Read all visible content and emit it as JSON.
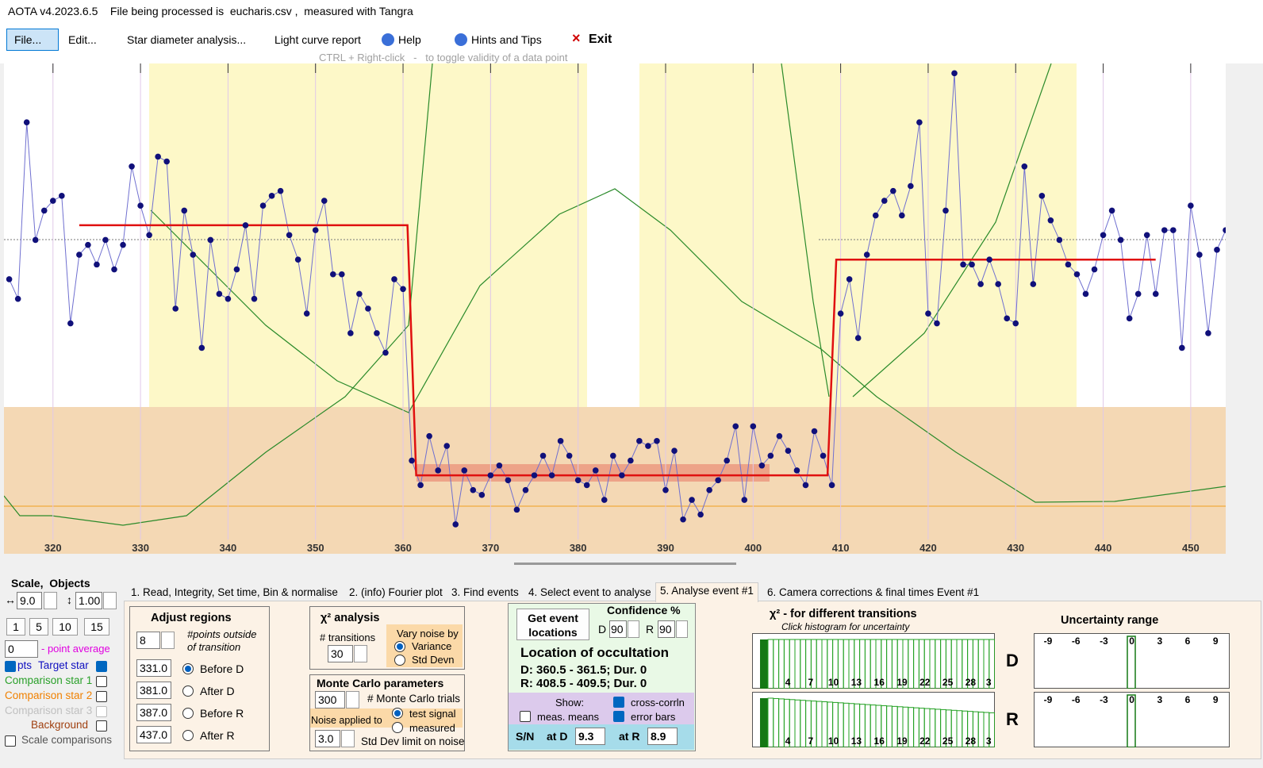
{
  "title": "AOTA v4.2023.6.5    File being processed is  eucharis.csv ,  measured with Tangra",
  "menu": [
    "File...",
    "Edit...",
    "Star diameter analysis...",
    "Light curve report",
    "Help",
    "Hints and Tips",
    "Exit"
  ],
  "hint": "CTRL + Right-click   -   to toggle validity of a data point",
  "plot": {
    "type": "line",
    "x": [
      315,
      316,
      317,
      318,
      319,
      320,
      321,
      322,
      323,
      324,
      325,
      326,
      327,
      328,
      329,
      330,
      331,
      332,
      333,
      334,
      335,
      336,
      337,
      338,
      339,
      340,
      341,
      342,
      343,
      344,
      345,
      346,
      347,
      348,
      349,
      350,
      351,
      352,
      353,
      354,
      355,
      356,
      357,
      358,
      359,
      360,
      361,
      362,
      363,
      364,
      365,
      366,
      367,
      368,
      369,
      370,
      371,
      372,
      373,
      374,
      375,
      376,
      377,
      378,
      379,
      380,
      381,
      382,
      383,
      384,
      385,
      386,
      387,
      388,
      389,
      390,
      391,
      392,
      393,
      394,
      395,
      396,
      397,
      398,
      399,
      400,
      401,
      402,
      403,
      404,
      405,
      406,
      407,
      408,
      409,
      410,
      411,
      412,
      413,
      414,
      415,
      416,
      417,
      418,
      419,
      420,
      421,
      422,
      423,
      424,
      425,
      426,
      427,
      428,
      429,
      430,
      431,
      432,
      433,
      434,
      435,
      436,
      437,
      438,
      439,
      440,
      441,
      442,
      443,
      444,
      445,
      446,
      447,
      448,
      449,
      450,
      451,
      452,
      453,
      454
    ],
    "values": [
      56,
      52,
      88,
      64,
      70,
      72,
      73,
      47,
      61,
      63,
      59,
      64,
      58,
      63,
      79,
      71,
      65,
      81,
      80,
      50,
      70,
      61,
      42,
      64,
      53,
      52,
      58,
      67,
      52,
      71,
      73,
      74,
      65,
      60,
      49,
      66,
      72,
      57,
      57,
      45,
      53,
      50,
      45,
      41,
      56,
      54,
      19,
      14,
      24,
      17,
      22,
      6,
      17,
      13,
      12,
      16,
      18,
      15,
      9,
      13,
      16,
      20,
      16,
      23,
      20,
      15,
      14,
      17,
      11,
      20,
      16,
      19,
      23,
      22,
      23,
      13,
      21,
      7,
      11,
      8,
      13,
      15,
      19,
      26,
      11,
      26,
      18,
      20,
      24,
      21,
      17,
      14,
      25,
      20,
      14,
      49,
      56,
      44,
      61,
      69,
      72,
      74,
      69,
      75,
      88,
      49,
      47,
      70,
      98,
      59,
      59,
      55,
      60,
      55,
      48,
      47,
      79,
      55,
      73,
      68,
      64,
      59,
      57,
      53,
      58,
      65,
      70,
      64,
      48,
      53,
      65,
      53,
      66,
      66,
      42,
      71,
      61,
      45,
      62,
      66
    ],
    "model": {
      "x": [
        323,
        360.5,
        361.5,
        408.5,
        409.5,
        446
      ],
      "values": [
        67,
        67,
        16,
        16,
        60,
        60
      ]
    },
    "xlim": [
      314.4,
      454
    ],
    "ylim": [
      0,
      100
    ],
    "xticks": [
      320,
      330,
      340,
      350,
      360,
      370,
      380,
      390,
      400,
      410,
      420,
      430,
      440,
      450
    ]
  },
  "left": {
    "heading": "Scale,  Objects",
    "scale_x": "9.0",
    "scale_y": "1.00",
    "buttons": [
      "1",
      "5",
      "10",
      "15"
    ],
    "average": "0",
    "average_label": "- point average",
    "objects": [
      "pts",
      "Target star",
      "Comparison star 1",
      "Comparison star 2",
      "Comparison star 3",
      "Background",
      "Scale comparisons"
    ]
  },
  "tabs": [
    "1.  Read, Integrity, Set time, Bin & normalise",
    "2. (info)  Fourier plot",
    "3. Find events",
    "4. Select event to analyse",
    "5. Analyse event #1",
    "6. Camera corrections & final times Event #1"
  ],
  "adjust": {
    "title": "Adjust regions",
    "points": "8",
    "points_label": "#points outside of transition",
    "rows": [
      [
        "331.0",
        "Before D"
      ],
      [
        "381.0",
        "After D"
      ],
      [
        "387.0",
        "Before R"
      ],
      [
        "437.0",
        "After R"
      ]
    ]
  },
  "chi": {
    "title": "χ² analysis",
    "transitions_label": "# transitions",
    "transitions": "30",
    "vary_label": "Vary noise by",
    "vary": [
      "Variance",
      "Std Devn"
    ]
  },
  "monte": {
    "title": "Monte Carlo parameters",
    "trials": "300",
    "trials_label": "# Monte Carlo trials",
    "noise_label": "Noise applied to",
    "noise": [
      "test signal",
      "measured"
    ],
    "limit": "3.0",
    "limit_label": "Std Dev limit on noise"
  },
  "event": {
    "button": "Get event locations",
    "confidence": "Confidence %",
    "d": "D",
    "d_value": "90",
    "r": "R",
    "r_value": "90",
    "location": "Location of occultation",
    "d_line": "D: 360.5 - 361.5; Dur. 0",
    "r_line": "R: 408.5 - 409.5; Dur. 0",
    "show": "Show:",
    "checks": [
      "meas. means",
      "cross-corrln",
      "error bars"
    ],
    "sn": "S/N",
    "at_d": "at D",
    "sn_d": "9.3",
    "at_r": "at R",
    "sn_r": "8.9"
  },
  "hist": {
    "title": "χ² - for different transitions",
    "subtitle": "Click histogram for uncertainty",
    "labels": [
      "4",
      "7",
      "10",
      "13",
      "16",
      "19",
      "22",
      "25",
      "28",
      "3"
    ],
    "d": "D",
    "r": "R"
  },
  "uncertainty": {
    "title": "Uncertainty range",
    "labels": [
      "-9",
      "-6",
      "-3",
      "0",
      "3",
      "6",
      "9"
    ]
  }
}
